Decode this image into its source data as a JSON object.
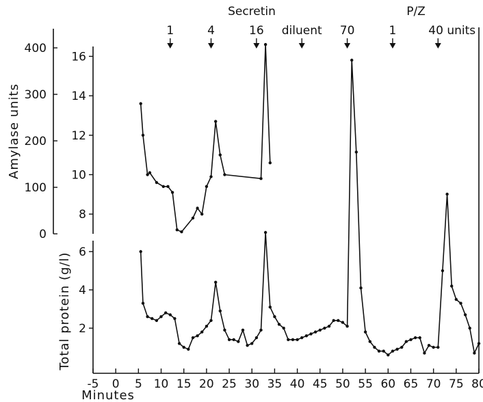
{
  "chart_data": {
    "type": "line",
    "xlabel": "Minutes",
    "xticks": [
      "-5",
      "0",
      "5",
      "10",
      "15",
      "20",
      "25",
      "30",
      "35",
      "40",
      "45",
      "50",
      "55",
      "60",
      "65",
      "70",
      "75",
      "80"
    ],
    "xlim": [
      -5,
      80
    ],
    "panels": [
      {
        "ylabel": "Amylase units",
        "yticks": [
          "0",
          "100",
          "200",
          "300",
          "400"
        ],
        "ylim": [
          0,
          400
        ],
        "secondary_yticks": [
          "8",
          "10",
          "12",
          "14",
          "16"
        ],
        "secondary_ylim": [
          7,
          16.5
        ]
      },
      {
        "ylabel": "Total protein (g/l)",
        "yticks": [
          "2",
          "4",
          "6"
        ],
        "ylim": [
          0,
          6
        ]
      }
    ],
    "annotations": {
      "groups": [
        "Secretin",
        "P/Z"
      ],
      "doses": [
        {
          "label": "1",
          "x": 12
        },
        {
          "label": "4",
          "x": 21
        },
        {
          "label": "16",
          "x": 31
        },
        {
          "label": "diluent",
          "x": 41
        },
        {
          "label": "70",
          "x": 51
        },
        {
          "label": "1",
          "x": 61
        },
        {
          "label": "40 units",
          "x": 71
        }
      ]
    },
    "series": [
      {
        "panel": 0,
        "points": [
          [
            5.5,
            13.6
          ],
          [
            6,
            12
          ],
          [
            7,
            10
          ],
          [
            7.5,
            10.1
          ],
          [
            9,
            9.6
          ],
          [
            10.5,
            9.4
          ],
          [
            11.5,
            9.4
          ],
          [
            12.5,
            9.1
          ],
          [
            13.5,
            7.2
          ],
          [
            14.5,
            7.1
          ],
          [
            17,
            7.8
          ],
          [
            18,
            8.3
          ],
          [
            19,
            8
          ],
          [
            20,
            9.4
          ],
          [
            21,
            9.9
          ],
          [
            22,
            12.7
          ],
          [
            23,
            11
          ],
          [
            24,
            10
          ],
          [
            32,
            9.8
          ],
          [
            33,
            16.6
          ],
          [
            34,
            10.6
          ]
        ]
      },
      {
        "panel": 1,
        "points": [
          [
            5.5,
            6
          ],
          [
            6,
            3.3
          ],
          [
            7,
            2.6
          ],
          [
            8,
            2.5
          ],
          [
            9,
            2.4
          ],
          [
            10,
            2.6
          ],
          [
            11,
            2.8
          ],
          [
            12,
            2.7
          ],
          [
            13,
            2.5
          ],
          [
            14,
            1.2
          ],
          [
            15,
            1.0
          ],
          [
            16,
            0.9
          ],
          [
            17,
            1.5
          ],
          [
            18,
            1.6
          ],
          [
            19,
            1.8
          ],
          [
            20,
            2.1
          ],
          [
            21,
            2.4
          ],
          [
            22,
            4.4
          ],
          [
            23,
            2.9
          ],
          [
            24,
            1.9
          ],
          [
            25,
            1.4
          ],
          [
            26,
            1.4
          ],
          [
            27,
            1.3
          ],
          [
            28,
            1.9
          ],
          [
            29,
            1.1
          ],
          [
            30,
            1.2
          ],
          [
            31,
            1.5
          ],
          [
            32,
            1.9
          ],
          [
            33,
            7.0
          ],
          [
            34,
            3.1
          ],
          [
            35,
            2.6
          ],
          [
            36,
            2.2
          ],
          [
            37,
            2.0
          ],
          [
            38,
            1.4
          ],
          [
            39,
            1.4
          ],
          [
            40,
            1.4
          ],
          [
            41,
            1.5
          ],
          [
            42,
            1.6
          ],
          [
            43,
            1.7
          ],
          [
            44,
            1.8
          ],
          [
            45,
            1.9
          ],
          [
            46,
            2.0
          ],
          [
            47,
            2.1
          ],
          [
            48,
            2.4
          ],
          [
            49,
            2.4
          ],
          [
            50,
            2.3
          ],
          [
            51,
            2.1
          ],
          [
            52,
            16.0
          ],
          [
            53,
            11.2
          ],
          [
            54,
            4.1
          ],
          [
            55,
            1.8
          ],
          [
            56,
            1.3
          ],
          [
            57,
            1.0
          ],
          [
            58,
            0.8
          ],
          [
            59,
            0.8
          ],
          [
            60,
            0.6
          ],
          [
            61,
            0.8
          ],
          [
            62,
            0.9
          ],
          [
            63,
            1.0
          ],
          [
            64,
            1.3
          ],
          [
            65,
            1.4
          ],
          [
            66,
            1.5
          ],
          [
            67,
            1.5
          ],
          [
            68,
            0.7
          ],
          [
            69,
            1.1
          ],
          [
            70,
            1.0
          ],
          [
            71,
            1.0
          ],
          [
            72,
            5.0
          ],
          [
            73,
            9.0
          ],
          [
            74,
            4.2
          ],
          [
            75,
            3.5
          ],
          [
            76,
            3.3
          ],
          [
            77,
            2.7
          ],
          [
            78,
            2.0
          ],
          [
            79,
            0.7
          ],
          [
            80,
            1.2
          ]
        ]
      }
    ]
  }
}
